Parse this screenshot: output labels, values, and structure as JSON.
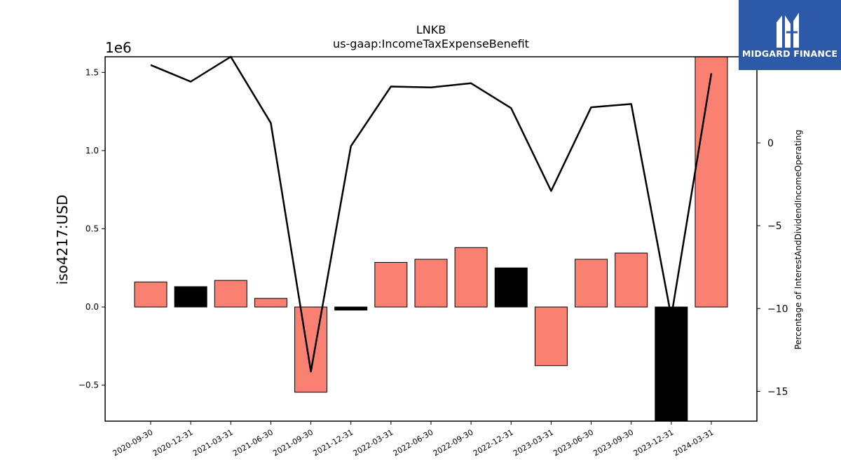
{
  "chart_data": {
    "type": "bar",
    "title": "LNKB",
    "subtitle": "us-gaap:IncomeTaxExpenseBenefit",
    "ylabel": "iso4217:USD",
    "y_offset_label": "1e6",
    "y2label": "Percentage of InterestAndDividendIncomeOperating",
    "ylim": [
      -0.73,
      1.6
    ],
    "y2lim": [
      -16.8,
      5.2
    ],
    "yticks": [
      {
        "value": -0.5,
        "label": "−0.5"
      },
      {
        "value": 0.0,
        "label": "0.0"
      },
      {
        "value": 0.5,
        "label": "0.5"
      },
      {
        "value": 1.0,
        "label": "1.0"
      },
      {
        "value": 1.5,
        "label": "1.5"
      }
    ],
    "y2ticks": [
      {
        "value": -15,
        "label": "−15"
      },
      {
        "value": -10,
        "label": "−10"
      },
      {
        "value": -5,
        "label": "−5"
      },
      {
        "value": 0,
        "label": "0"
      },
      {
        "value": 5,
        "label": "5"
      }
    ],
    "categories": [
      "2020-09-30",
      "2020-12-31",
      "2021-03-31",
      "2021-06-30",
      "2021-09-30",
      "2021-12-31",
      "2022-03-31",
      "2022-06-30",
      "2022-09-30",
      "2022-12-31",
      "2023-03-31",
      "2023-06-30",
      "2023-09-30",
      "2023-12-31",
      "2024-03-31"
    ],
    "bar_values": [
      0.16,
      0.13,
      0.17,
      0.055,
      -0.545,
      -0.02,
      0.285,
      0.305,
      0.38,
      0.25,
      -0.375,
      0.305,
      0.345,
      -0.75,
      1.65
    ],
    "bar_colors": [
      "#fa8072",
      "#000000",
      "#fa8072",
      "#fa8072",
      "#fa8072",
      "#000000",
      "#fa8072",
      "#fa8072",
      "#fa8072",
      "#000000",
      "#fa8072",
      "#fa8072",
      "#fa8072",
      "#000000",
      "#fa8072"
    ],
    "line_values": [
      4.7,
      3.7,
      5.2,
      1.2,
      -13.8,
      -0.2,
      3.4,
      3.35,
      3.6,
      2.1,
      -2.9,
      2.15,
      2.35,
      -10.5,
      4.2
    ],
    "line_color": "#000000",
    "grid": false
  },
  "logo": {
    "text": "MIDGARD FINANCE",
    "background": "#2d5aa8"
  }
}
